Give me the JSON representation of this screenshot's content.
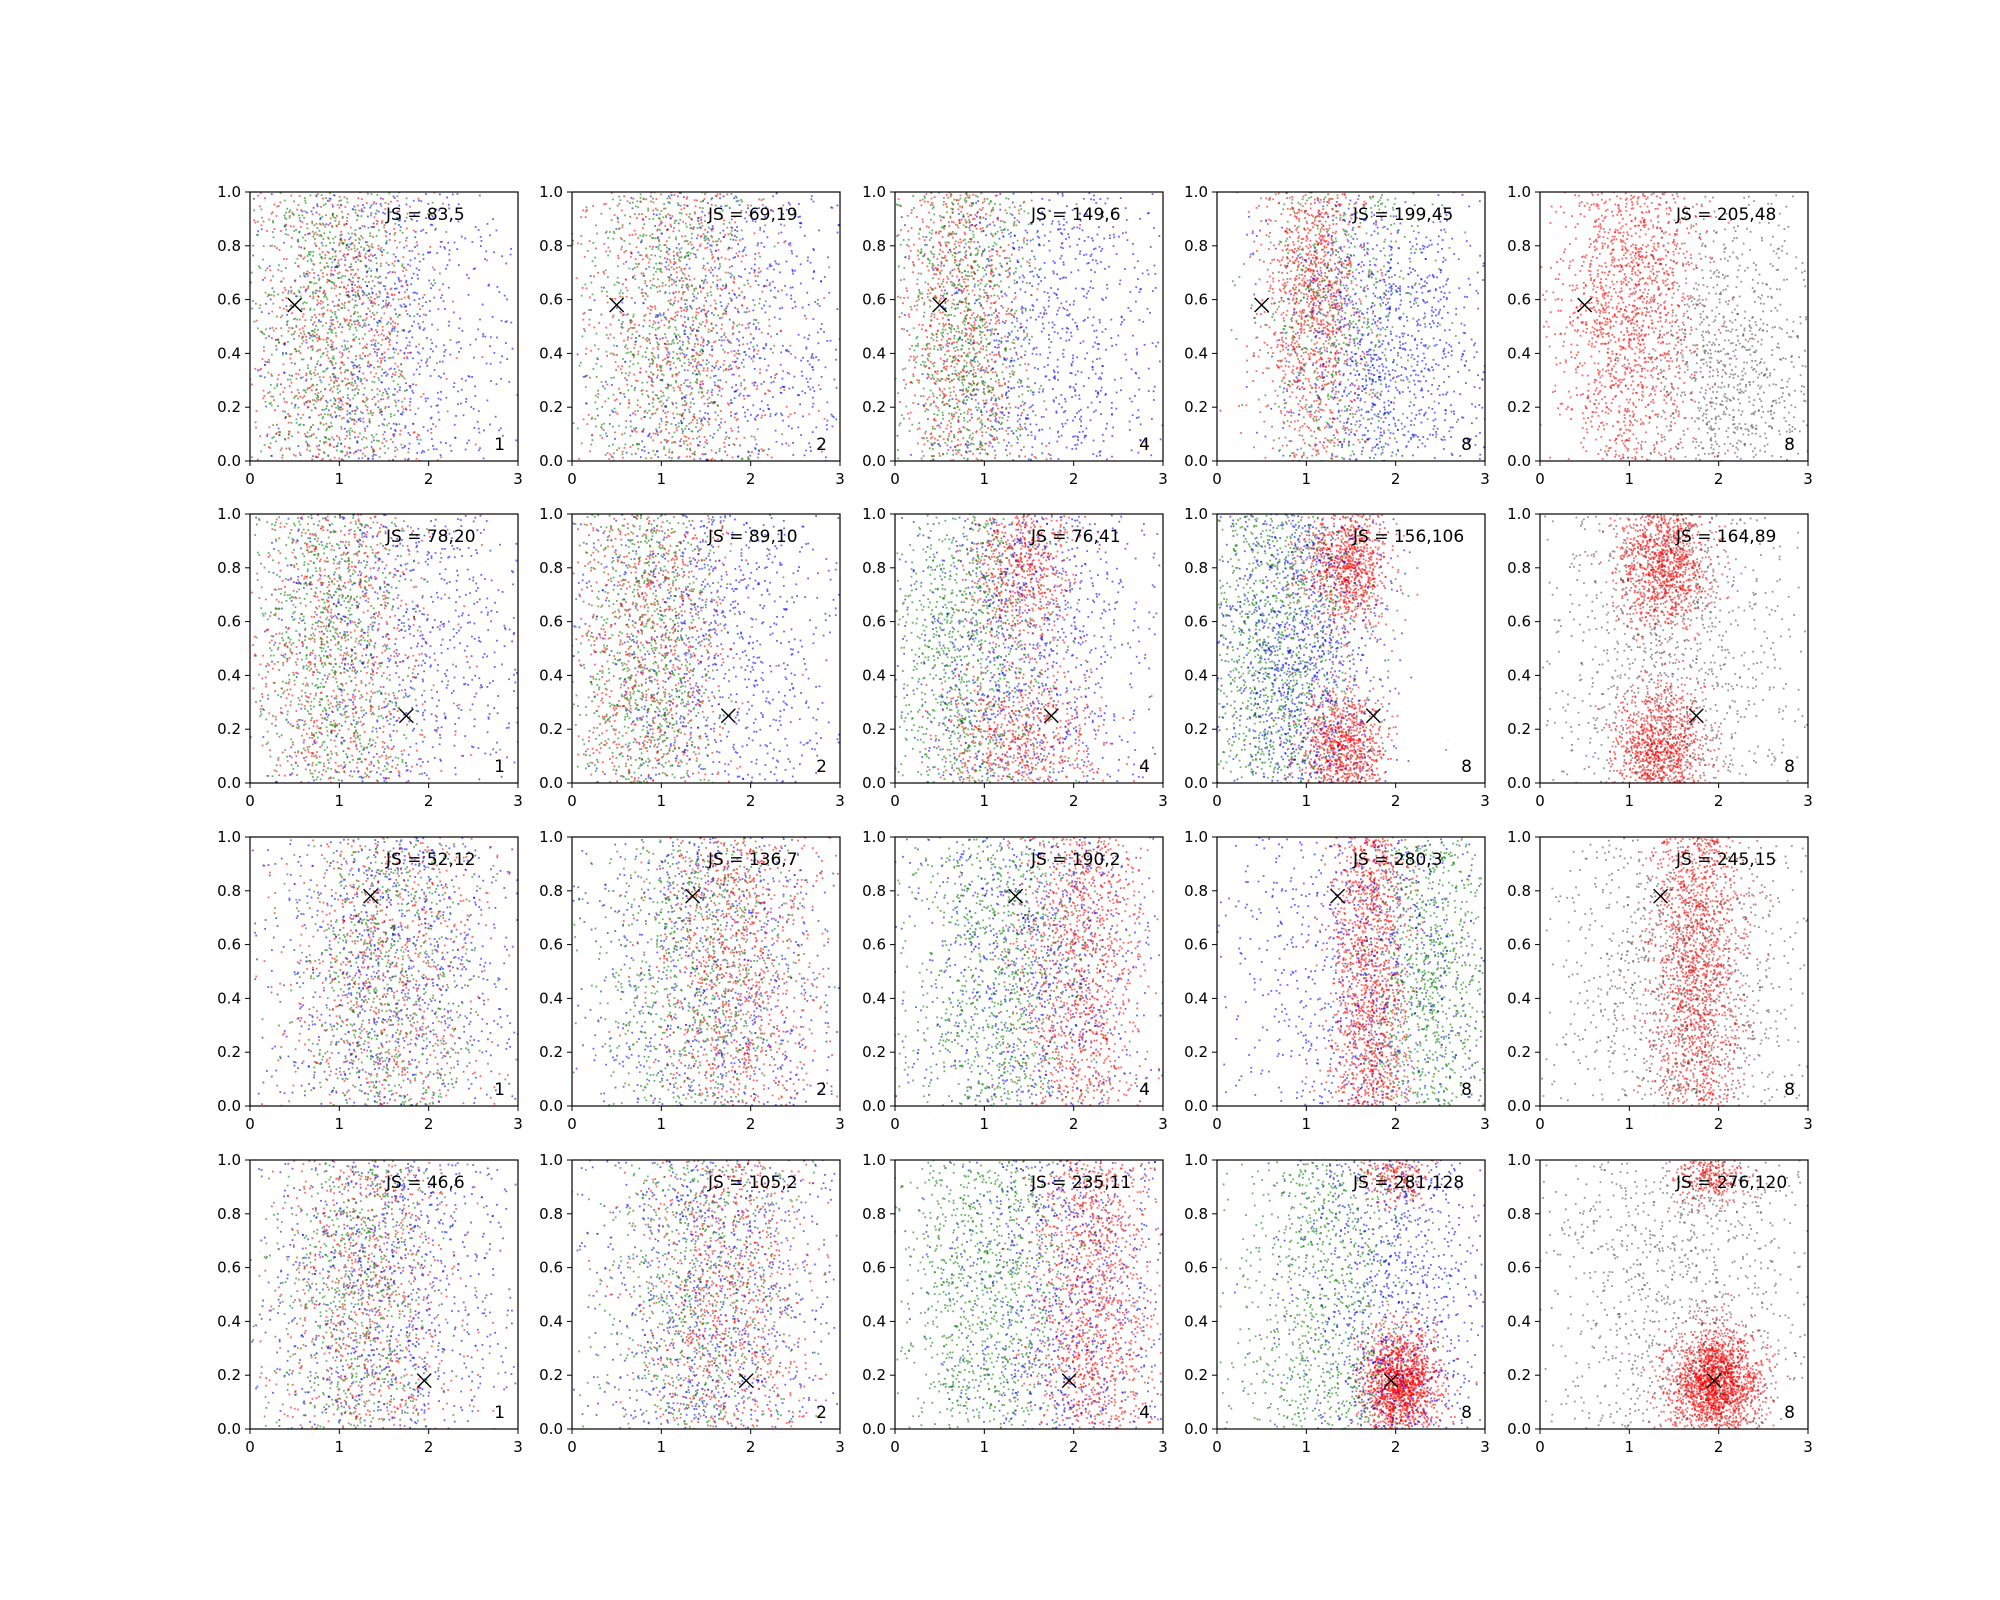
{
  "colors": {
    "red": "#ff0000",
    "green": "#008000",
    "blue": "#0000ff",
    "gray": "#404040",
    "marker": "#000000"
  },
  "chart_data": {
    "type": "scatter",
    "rows": 4,
    "cols": 5,
    "xlim": [
      0,
      3
    ],
    "ylim": [
      0,
      1
    ],
    "xticks": [
      "0",
      "1",
      "2",
      "3"
    ],
    "yticks": [
      "0.0",
      "0.2",
      "0.4",
      "0.6",
      "0.8",
      "1.0"
    ],
    "panels": [
      {
        "row": 0,
        "col": 0,
        "js_label": "JS = 83,5",
        "corner_label": "1",
        "marker": [
          0.5,
          0.58
        ],
        "clusters": [
          {
            "color": "red",
            "cx": 1.0,
            "sx": 0.55,
            "cy": 0.5,
            "sy": 0.6,
            "n": 800
          },
          {
            "color": "green",
            "cx": 0.95,
            "sx": 0.45,
            "cy": 0.5,
            "sy": 0.6,
            "n": 800
          },
          {
            "color": "blue",
            "cx": 1.6,
            "sx": 0.8,
            "cy": 0.5,
            "sy": 0.6,
            "n": 700
          }
        ]
      },
      {
        "row": 0,
        "col": 1,
        "js_label": "JS = 69,19",
        "corner_label": "2",
        "marker": [
          0.5,
          0.58
        ],
        "clusters": [
          {
            "color": "red",
            "cx": 1.2,
            "sx": 0.6,
            "cy": 0.5,
            "sy": 0.6,
            "n": 800
          },
          {
            "color": "green",
            "cx": 1.1,
            "sx": 0.5,
            "cy": 0.5,
            "sy": 0.6,
            "n": 700
          },
          {
            "color": "blue",
            "cx": 1.9,
            "sx": 0.8,
            "cy": 0.45,
            "sy": 0.6,
            "n": 700
          }
        ]
      },
      {
        "row": 0,
        "col": 2,
        "js_label": "JS = 149,6",
        "corner_label": "4",
        "marker": [
          0.5,
          0.58
        ],
        "clusters": [
          {
            "color": "red",
            "cx": 0.75,
            "sx": 0.35,
            "cy": 0.5,
            "sy": 0.6,
            "n": 800
          },
          {
            "color": "green",
            "cx": 0.8,
            "sx": 0.4,
            "cy": 0.5,
            "sy": 0.6,
            "n": 800
          },
          {
            "color": "blue",
            "cx": 1.8,
            "sx": 0.75,
            "cy": 0.4,
            "sy": 0.55,
            "n": 800
          }
        ]
      },
      {
        "row": 0,
        "col": 3,
        "js_label": "JS = 199,45",
        "corner_label": "8",
        "marker": [
          0.5,
          0.58
        ],
        "clusters": [
          {
            "color": "red",
            "cx": 1.1,
            "sx": 0.3,
            "cy": 0.62,
            "sy": 0.35,
            "n": 1100
          },
          {
            "color": "green",
            "cx": 1.4,
            "sx": 0.5,
            "cy": 0.55,
            "sy": 0.55,
            "n": 600
          },
          {
            "color": "blue",
            "cx": 1.9,
            "sx": 0.6,
            "cy": 0.35,
            "sy": 0.4,
            "n": 1000
          }
        ]
      },
      {
        "row": 0,
        "col": 4,
        "js_label": "JS = 205,48",
        "corner_label": "8",
        "marker": [
          0.5,
          0.58
        ],
        "clusters": [
          {
            "color": "red",
            "cx": 1.0,
            "sx": 0.4,
            "cy": 0.62,
            "sy": 0.4,
            "n": 1400
          },
          {
            "color": "gray",
            "cx": 2.1,
            "sx": 0.55,
            "cy": 0.3,
            "sy": 0.35,
            "n": 900
          }
        ]
      },
      {
        "row": 1,
        "col": 0,
        "js_label": "JS = 78,20",
        "corner_label": "1",
        "marker": [
          1.75,
          0.25
        ],
        "clusters": [
          {
            "color": "red",
            "cx": 1.0,
            "sx": 0.55,
            "cy": 0.5,
            "sy": 0.6,
            "n": 800
          },
          {
            "color": "green",
            "cx": 0.9,
            "sx": 0.45,
            "cy": 0.5,
            "sy": 0.6,
            "n": 800
          },
          {
            "color": "blue",
            "cx": 1.7,
            "sx": 0.8,
            "cy": 0.55,
            "sy": 0.6,
            "n": 700
          }
        ]
      },
      {
        "row": 1,
        "col": 1,
        "js_label": "JS = 89,10",
        "corner_label": "2",
        "marker": [
          1.75,
          0.25
        ],
        "clusters": [
          {
            "color": "red",
            "cx": 0.9,
            "sx": 0.45,
            "cy": 0.5,
            "sy": 0.6,
            "n": 800
          },
          {
            "color": "green",
            "cx": 0.85,
            "sx": 0.4,
            "cy": 0.5,
            "sy": 0.6,
            "n": 800
          },
          {
            "color": "blue",
            "cx": 1.7,
            "sx": 0.8,
            "cy": 0.5,
            "sy": 0.6,
            "n": 800
          }
        ]
      },
      {
        "row": 1,
        "col": 2,
        "js_label": "JS = 76,41",
        "corner_label": "4",
        "marker": [
          1.75,
          0.25
        ],
        "clusters": [
          {
            "color": "red",
            "cx": 1.4,
            "sx": 0.3,
            "cy": 0.82,
            "sy": 0.15,
            "n": 600
          },
          {
            "color": "red",
            "cx": 1.4,
            "sx": 0.45,
            "cy": 0.15,
            "sy": 0.15,
            "n": 600
          },
          {
            "color": "green",
            "cx": 0.8,
            "sx": 0.45,
            "cy": 0.5,
            "sy": 0.55,
            "n": 900
          },
          {
            "color": "blue",
            "cx": 1.5,
            "sx": 0.7,
            "cy": 0.5,
            "sy": 0.55,
            "n": 900
          }
        ]
      },
      {
        "row": 1,
        "col": 3,
        "js_label": "JS = 156,106",
        "corner_label": "8",
        "marker": [
          1.75,
          0.25
        ],
        "clusters": [
          {
            "color": "red",
            "cx": 1.45,
            "sx": 0.25,
            "cy": 0.82,
            "sy": 0.12,
            "n": 900
          },
          {
            "color": "red",
            "cx": 1.4,
            "sx": 0.25,
            "cy": 0.12,
            "sy": 0.12,
            "n": 800
          },
          {
            "color": "green",
            "cx": 0.7,
            "sx": 0.45,
            "cy": 0.5,
            "sy": 0.55,
            "n": 1000
          },
          {
            "color": "blue",
            "cx": 0.9,
            "sx": 0.5,
            "cy": 0.45,
            "sy": 0.5,
            "n": 1000
          }
        ]
      },
      {
        "row": 1,
        "col": 4,
        "js_label": "JS = 164,89",
        "corner_label": "8",
        "marker": [
          1.75,
          0.25
        ],
        "clusters": [
          {
            "color": "red",
            "cx": 1.4,
            "sx": 0.25,
            "cy": 0.82,
            "sy": 0.12,
            "n": 1000
          },
          {
            "color": "red",
            "cx": 1.35,
            "sx": 0.25,
            "cy": 0.12,
            "sy": 0.12,
            "n": 900
          },
          {
            "color": "gray",
            "cx": 1.4,
            "sx": 0.7,
            "cy": 0.5,
            "sy": 0.6,
            "n": 1000
          }
        ]
      },
      {
        "row": 2,
        "col": 0,
        "js_label": "JS = 52,12",
        "corner_label": "1",
        "marker": [
          1.35,
          0.78
        ],
        "clusters": [
          {
            "color": "red",
            "cx": 1.5,
            "sx": 0.55,
            "cy": 0.5,
            "sy": 0.6,
            "n": 800
          },
          {
            "color": "green",
            "cx": 1.5,
            "sx": 0.5,
            "cy": 0.45,
            "sy": 0.6,
            "n": 700
          },
          {
            "color": "blue",
            "cx": 1.6,
            "sx": 0.75,
            "cy": 0.5,
            "sy": 0.6,
            "n": 800
          }
        ]
      },
      {
        "row": 2,
        "col": 1,
        "js_label": "JS = 136,7",
        "corner_label": "2",
        "marker": [
          1.35,
          0.78
        ],
        "clusters": [
          {
            "color": "red",
            "cx": 1.8,
            "sx": 0.45,
            "cy": 0.5,
            "sy": 0.6,
            "n": 1000
          },
          {
            "color": "green",
            "cx": 1.3,
            "sx": 0.55,
            "cy": 0.5,
            "sy": 0.6,
            "n": 800
          },
          {
            "color": "blue",
            "cx": 1.6,
            "sx": 0.8,
            "cy": 0.5,
            "sy": 0.6,
            "n": 700
          }
        ]
      },
      {
        "row": 2,
        "col": 2,
        "js_label": "JS = 190,2",
        "corner_label": "4",
        "marker": [
          1.35,
          0.78
        ],
        "clusters": [
          {
            "color": "red",
            "cx": 2.05,
            "sx": 0.35,
            "cy": 0.5,
            "sy": 0.6,
            "n": 1100
          },
          {
            "color": "green",
            "cx": 1.2,
            "sx": 0.5,
            "cy": 0.5,
            "sy": 0.6,
            "n": 900
          },
          {
            "color": "blue",
            "cx": 1.5,
            "sx": 0.75,
            "cy": 0.5,
            "sy": 0.6,
            "n": 800
          }
        ]
      },
      {
        "row": 2,
        "col": 3,
        "js_label": "JS = 280,3",
        "corner_label": "8",
        "marker": [
          1.35,
          0.78
        ],
        "clusters": [
          {
            "color": "red",
            "cx": 1.7,
            "sx": 0.22,
            "cy": 0.5,
            "sy": 0.6,
            "n": 1400
          },
          {
            "color": "green",
            "cx": 2.4,
            "sx": 0.35,
            "cy": 0.5,
            "sy": 0.6,
            "n": 800
          },
          {
            "color": "blue",
            "cx": 1.6,
            "sx": 0.8,
            "cy": 0.5,
            "sy": 0.6,
            "n": 800
          }
        ]
      },
      {
        "row": 2,
        "col": 4,
        "js_label": "JS = 245,15",
        "corner_label": "8",
        "marker": [
          1.35,
          0.78
        ],
        "clusters": [
          {
            "color": "red",
            "cx": 1.75,
            "sx": 0.25,
            "cy": 0.55,
            "sy": 0.55,
            "n": 1500
          },
          {
            "color": "gray",
            "cx": 1.6,
            "sx": 0.8,
            "cy": 0.4,
            "sy": 0.5,
            "n": 1000
          }
        ]
      },
      {
        "row": 3,
        "col": 0,
        "js_label": "JS = 46,6",
        "corner_label": "1",
        "marker": [
          1.95,
          0.18
        ],
        "clusters": [
          {
            "color": "red",
            "cx": 1.3,
            "sx": 0.55,
            "cy": 0.5,
            "sy": 0.6,
            "n": 800
          },
          {
            "color": "green",
            "cx": 1.2,
            "sx": 0.5,
            "cy": 0.5,
            "sy": 0.6,
            "n": 700
          },
          {
            "color": "blue",
            "cx": 1.6,
            "sx": 0.8,
            "cy": 0.5,
            "sy": 0.6,
            "n": 800
          }
        ]
      },
      {
        "row": 3,
        "col": 1,
        "js_label": "JS = 105,2",
        "corner_label": "2",
        "marker": [
          1.95,
          0.18
        ],
        "clusters": [
          {
            "color": "red",
            "cx": 1.7,
            "sx": 0.5,
            "cy": 0.5,
            "sy": 0.6,
            "n": 900
          },
          {
            "color": "green",
            "cx": 1.4,
            "sx": 0.55,
            "cy": 0.5,
            "sy": 0.6,
            "n": 700
          },
          {
            "color": "blue",
            "cx": 1.6,
            "sx": 0.8,
            "cy": 0.5,
            "sy": 0.6,
            "n": 800
          }
        ]
      },
      {
        "row": 3,
        "col": 2,
        "js_label": "JS = 235,11",
        "corner_label": "4",
        "marker": [
          1.95,
          0.18
        ],
        "clusters": [
          {
            "color": "red",
            "cx": 2.2,
            "sx": 0.35,
            "cy": 0.5,
            "sy": 0.6,
            "n": 1200
          },
          {
            "color": "green",
            "cx": 1.0,
            "sx": 0.5,
            "cy": 0.5,
            "sy": 0.6,
            "n": 1000
          },
          {
            "color": "blue",
            "cx": 1.9,
            "sx": 0.7,
            "cy": 0.5,
            "sy": 0.6,
            "n": 800
          }
        ]
      },
      {
        "row": 3,
        "col": 3,
        "js_label": "JS = 281,128",
        "corner_label": "8",
        "marker": [
          1.95,
          0.18
        ],
        "clusters": [
          {
            "color": "red",
            "cx": 2.05,
            "sx": 0.22,
            "cy": 0.17,
            "sy": 0.1,
            "n": 1500
          },
          {
            "color": "red",
            "cx": 2.0,
            "sx": 0.2,
            "cy": 0.95,
            "sy": 0.06,
            "n": 200
          },
          {
            "color": "green",
            "cx": 1.2,
            "sx": 0.5,
            "cy": 0.5,
            "sy": 0.6,
            "n": 900
          },
          {
            "color": "blue",
            "cx": 2.0,
            "sx": 0.6,
            "cy": 0.5,
            "sy": 0.6,
            "n": 900
          }
        ]
      },
      {
        "row": 3,
        "col": 4,
        "js_label": "JS = 276,120",
        "corner_label": "8",
        "marker": [
          1.95,
          0.18
        ],
        "clusters": [
          {
            "color": "red",
            "cx": 1.95,
            "sx": 0.25,
            "cy": 0.17,
            "sy": 0.1,
            "n": 1800
          },
          {
            "color": "red",
            "cx": 1.9,
            "sx": 0.2,
            "cy": 0.95,
            "sy": 0.06,
            "n": 250
          },
          {
            "color": "gray",
            "cx": 1.6,
            "sx": 0.8,
            "cy": 0.55,
            "sy": 0.6,
            "n": 1000
          }
        ]
      }
    ]
  }
}
